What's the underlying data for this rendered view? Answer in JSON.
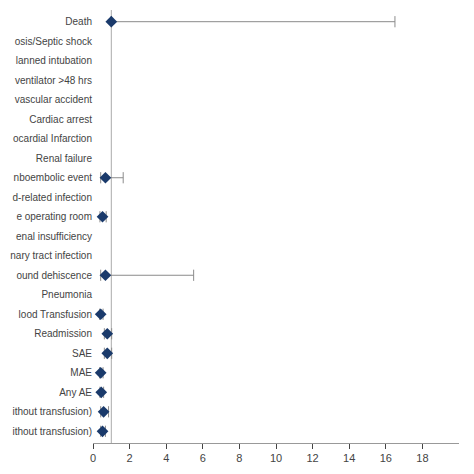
{
  "chart_data": {
    "type": "forest",
    "categories": [
      "Death",
      "osis/Septic shock",
      "lanned intubation",
      "ventilator >48 hrs",
      "vascular accident",
      "Cardiac arrest",
      "ocardial Infarction",
      "Renal failure",
      "nboembolic event",
      "d-related infection",
      "e operating room",
      "enal insufficiency",
      "nary tract infection",
      "ound dehiscence",
      "Pneumonia",
      "lood Transfusion",
      "Readmission",
      "SAE",
      "MAE",
      "Any AE",
      "ithout transfusion)",
      "ithout transfusion)"
    ],
    "values": [
      1.0,
      null,
      null,
      null,
      null,
      null,
      null,
      null,
      0.68,
      null,
      0.52,
      null,
      null,
      0.68,
      null,
      0.42,
      0.78,
      0.78,
      0.42,
      0.45,
      0.58,
      0.52
    ],
    "ci_lower": [
      1.0,
      null,
      null,
      null,
      null,
      null,
      null,
      null,
      0.42,
      null,
      0.38,
      null,
      null,
      0.42,
      null,
      0.36,
      0.62,
      0.62,
      0.36,
      0.38,
      0.42,
      0.42
    ],
    "ci_upper": [
      16.5,
      null,
      null,
      null,
      null,
      null,
      null,
      null,
      1.65,
      null,
      0.72,
      null,
      null,
      5.5,
      null,
      0.55,
      1.02,
      1.02,
      0.55,
      0.58,
      0.85,
      0.68
    ],
    "color": "#1a3a6b",
    "marker": "diamond",
    "reference_line": 1.0,
    "xlim": [
      0,
      20
    ],
    "xticks": [
      0,
      2,
      4,
      6,
      8,
      10,
      12,
      14,
      16,
      18
    ],
    "grid": false
  }
}
